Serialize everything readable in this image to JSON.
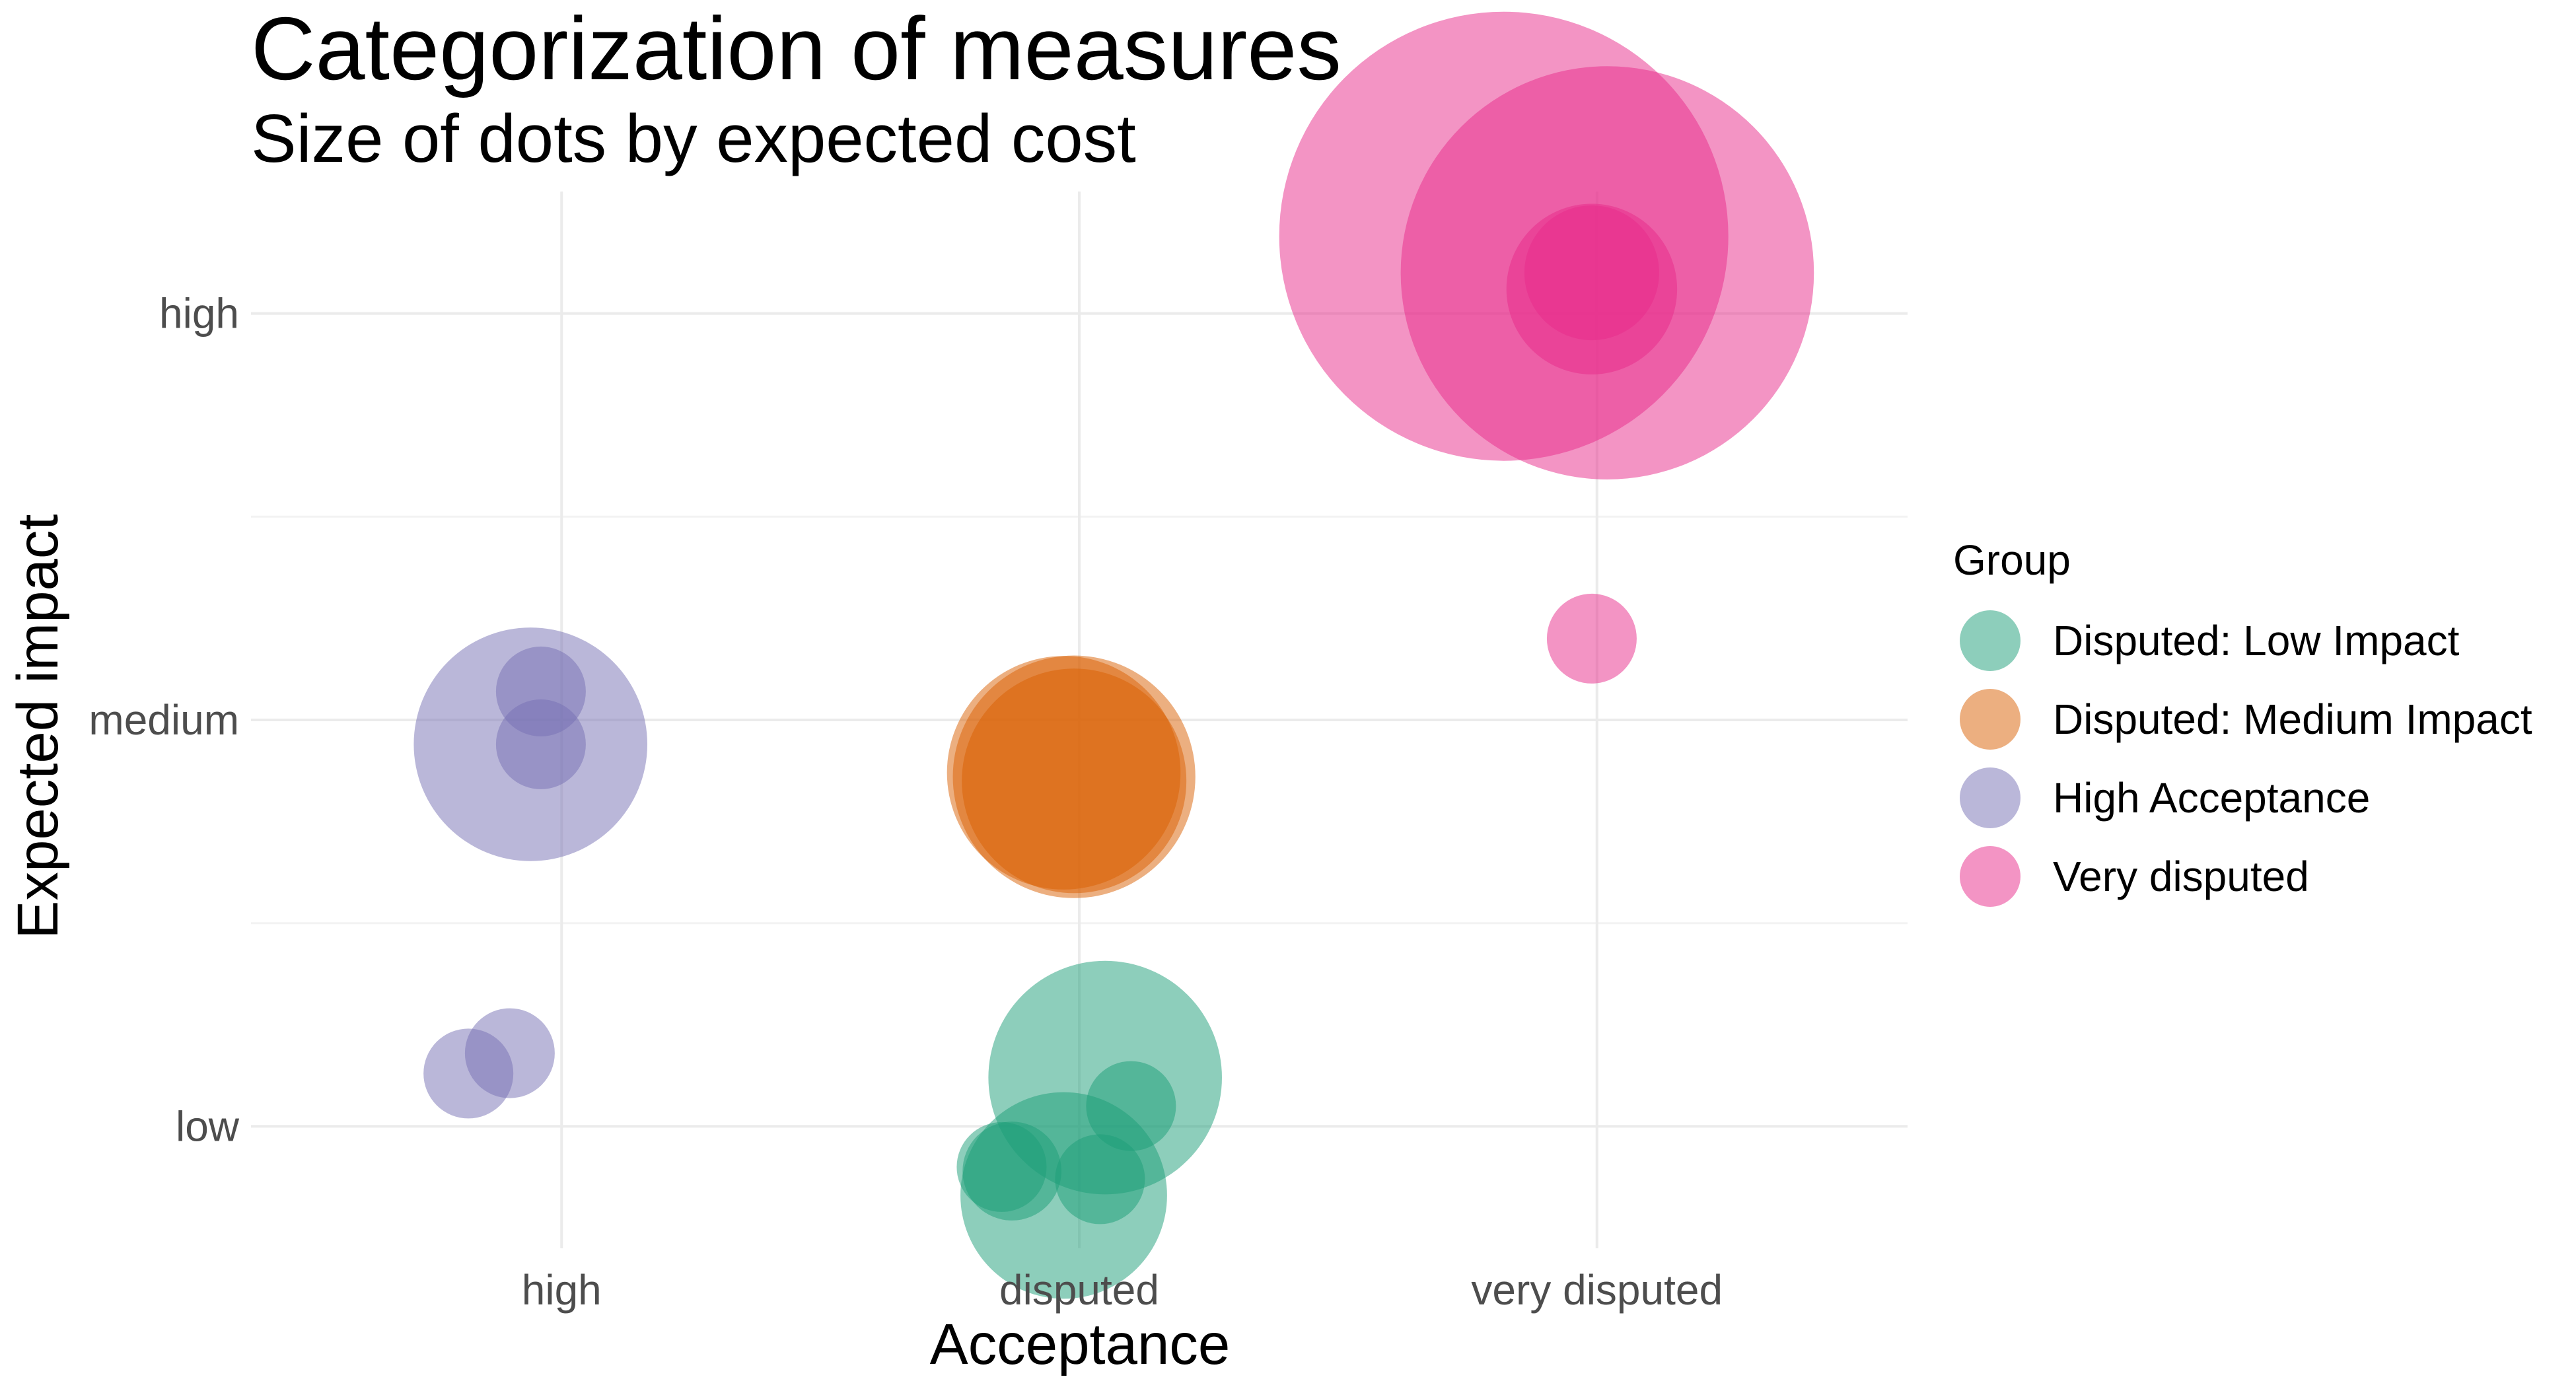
{
  "chart_data": {
    "type": "scatter",
    "title": "Categorization of measures",
    "subtitle": "Size of dots by expected cost",
    "xlabel": "Acceptance",
    "ylabel": "Expected impact",
    "x_categories": [
      "high",
      "disputed",
      "very disputed"
    ],
    "y_categories": [
      "low",
      "medium",
      "high"
    ],
    "grid": true,
    "legend": {
      "title": "Group",
      "position": "right",
      "entries": [
        {
          "name": "Disputed: Low Impact",
          "color": "#1b9e77"
        },
        {
          "name": "Disputed: Medium Impact",
          "color": "#d95f02"
        },
        {
          "name": "High Acceptance",
          "color": "#7570b3"
        },
        {
          "name": "Very disputed",
          "color": "#e7298a"
        }
      ]
    },
    "series": [
      {
        "name": "Disputed: Low Impact",
        "color": "#1b9e77",
        "points": [
          {
            "x": 2.05,
            "y": 1.12,
            "size": 2.6
          },
          {
            "x": 2.1,
            "y": 1.05,
            "size": 1.0
          },
          {
            "x": 1.97,
            "y": 0.83,
            "size": 2.3
          },
          {
            "x": 2.04,
            "y": 0.87,
            "size": 1.0
          },
          {
            "x": 1.87,
            "y": 0.89,
            "size": 1.1
          },
          {
            "x": 1.85,
            "y": 0.9,
            "size": 1.0
          }
        ]
      },
      {
        "name": "Disputed: Medium Impact",
        "color": "#d95f02",
        "points": [
          {
            "x": 1.97,
            "y": 1.87,
            "size": 2.6
          },
          {
            "x": 1.99,
            "y": 1.86,
            "size": 2.7
          },
          {
            "x": 1.99,
            "y": 1.85,
            "size": 2.5
          }
        ]
      },
      {
        "name": "High Acceptance",
        "color": "#7570b3",
        "points": [
          {
            "x": 0.94,
            "y": 1.94,
            "size": 2.6
          },
          {
            "x": 0.96,
            "y": 1.94,
            "size": 1.0
          },
          {
            "x": 0.96,
            "y": 2.07,
            "size": 1.0
          },
          {
            "x": 0.9,
            "y": 1.18,
            "size": 1.0
          },
          {
            "x": 0.82,
            "y": 1.13,
            "size": 1.0
          }
        ]
      },
      {
        "name": "Very disputed",
        "color": "#e7298a",
        "points": [
          {
            "x": 2.82,
            "y": 3.19,
            "size": 5.0
          },
          {
            "x": 3.02,
            "y": 3.1,
            "size": 4.6
          },
          {
            "x": 2.99,
            "y": 3.06,
            "size": 1.9
          },
          {
            "x": 2.99,
            "y": 3.1,
            "size": 1.5
          },
          {
            "x": 2.99,
            "y": 2.2,
            "size": 1.0
          }
        ]
      }
    ]
  }
}
